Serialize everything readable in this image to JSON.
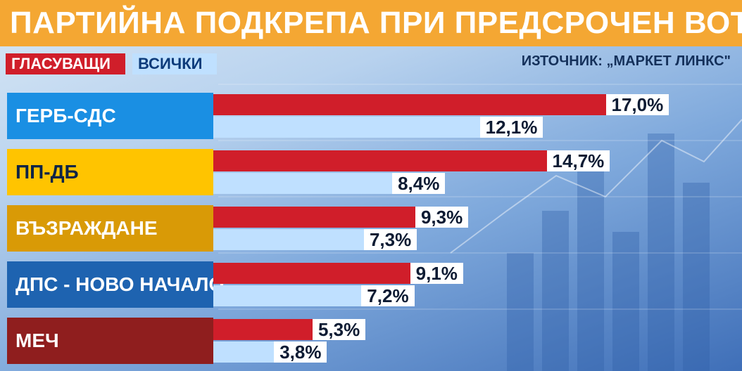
{
  "header": {
    "title": "ПАРТИЙНА ПОДКРЕПА ПРИ ПРЕДСРОЧЕН ВОТ",
    "source": "ИЗТОЧНИК: „МАРКЕТ ЛИНКС\""
  },
  "legend": {
    "voters_label": "ГЛАСУВАЩИ",
    "all_label": "ВСИЧКИ"
  },
  "colors": {
    "title_bar": "#f4a733",
    "voters_bar": "#d01e2a",
    "all_bar": "#bfe0ff"
  },
  "chart_data": {
    "type": "bar",
    "orientation": "horizontal",
    "categories": [
      "ГЕРБ-СДС",
      "ПП-ДБ",
      "ВЪЗРАЖДАНЕ",
      "ДПС - НОВО НАЧАЛО",
      "МЕЧ"
    ],
    "category_colors": [
      "#1a8fe3",
      "#ffc400",
      "#d99a06",
      "#1e63b0",
      "#8f1e1e"
    ],
    "category_text_colors": [
      "#ffffff",
      "#0d2447",
      "#ffffff",
      "#ffffff",
      "#ffffff"
    ],
    "series": [
      {
        "name": "ГЛАСУВАЩИ",
        "values": [
          17.0,
          14.7,
          9.3,
          9.1,
          5.3
        ],
        "labels": [
          "17,0%",
          "14,7%",
          "9,3%",
          "9,1%",
          "5,3%"
        ]
      },
      {
        "name": "ВСИЧКИ",
        "values": [
          12.1,
          8.4,
          7.3,
          7.2,
          3.8
        ],
        "labels": [
          "12,1%",
          "8,4%",
          "7,3%",
          "7,2%",
          "3,8%"
        ]
      }
    ],
    "value_unit": "%",
    "grid": false,
    "legend_position": "top-left"
  }
}
